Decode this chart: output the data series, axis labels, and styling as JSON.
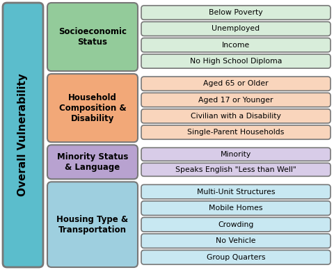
{
  "overall_label": "Overall Vulnerability",
  "overall_bg": "#5BBDCC",
  "themes": [
    {
      "name": "Socioeconomic\nStatus",
      "theme_color": "#93CB9A",
      "item_color": "#D8EDDA",
      "items": [
        "Below Poverty",
        "Unemployed",
        "Income",
        "No High School Diploma"
      ]
    },
    {
      "name": "Household\nComposition &\nDisability",
      "theme_color": "#F2A878",
      "item_color": "#F9D5BC",
      "items": [
        "Aged 65 or Older",
        "Aged 17 or Younger",
        "Civilian with a Disability",
        "Single-Parent Households"
      ]
    },
    {
      "name": "Minority Status\n& Language",
      "theme_color": "#B8A2D0",
      "item_color": "#D8CCE8",
      "items": [
        "Minority",
        "Speaks English \"Less than Well\""
      ]
    },
    {
      "name": "Housing Type &\nTransportation",
      "theme_color": "#9ECFDF",
      "item_color": "#C8E8F2",
      "items": [
        "Multi-Unit Structures",
        "Mobile Homes",
        "Crowding",
        "No Vehicle",
        "Group Quarters"
      ]
    }
  ],
  "background_color": "#FFFFFF",
  "border_color": "#777777",
  "text_color": "#000000",
  "overall_text_color": "#000000",
  "figsize": [
    4.8,
    3.88
  ],
  "dpi": 100
}
